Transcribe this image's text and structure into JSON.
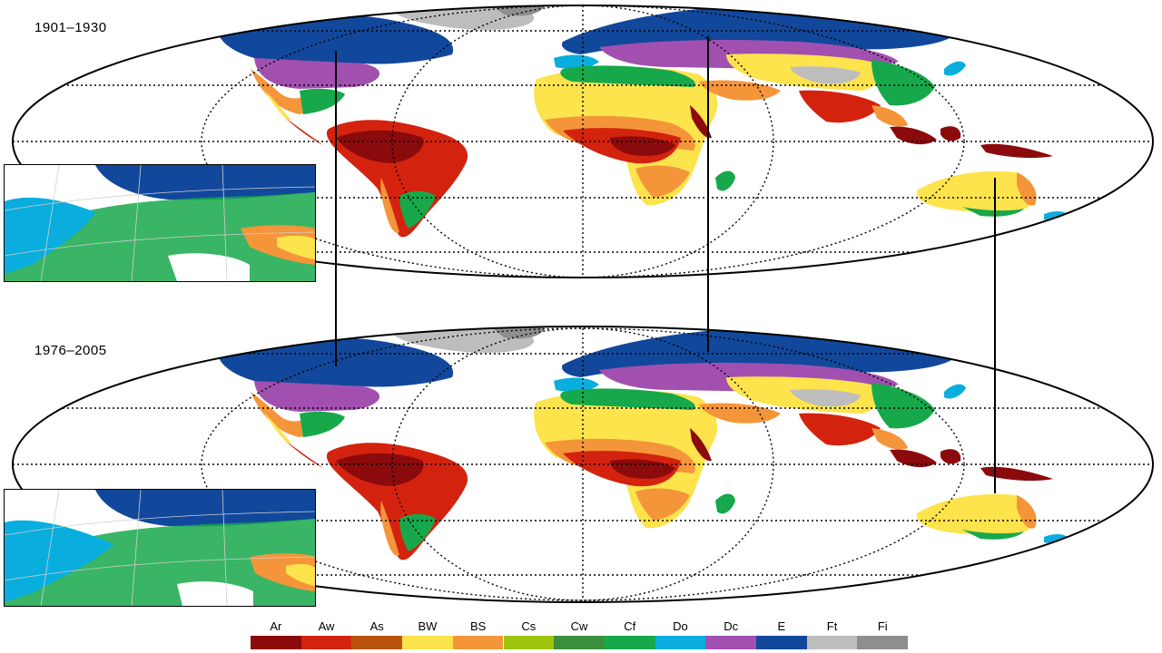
{
  "periods": [
    {
      "label": "1901–1930"
    },
    {
      "label": "1976–2005"
    }
  ],
  "legend": [
    {
      "code": "Ar",
      "color": "#8b0a0c"
    },
    {
      "code": "Aw",
      "color": "#d3230f"
    },
    {
      "code": "As",
      "color": "#b9530c"
    },
    {
      "code": "BW",
      "color": "#fde34c"
    },
    {
      "code": "BS",
      "color": "#f4953a"
    },
    {
      "code": "Cs",
      "color": "#9fc40c"
    },
    {
      "code": "Cw",
      "color": "#3b8e3b"
    },
    {
      "code": "Cf",
      "color": "#16a84a"
    },
    {
      "code": "Do",
      "color": "#0aaede"
    },
    {
      "code": "Dc",
      "color": "#a250b0"
    },
    {
      "code": "E",
      "color": "#12489c"
    },
    {
      "code": "Ft",
      "color": "#bdbdbd"
    },
    {
      "code": "Fi",
      "color": "#8e8e8e"
    }
  ]
}
